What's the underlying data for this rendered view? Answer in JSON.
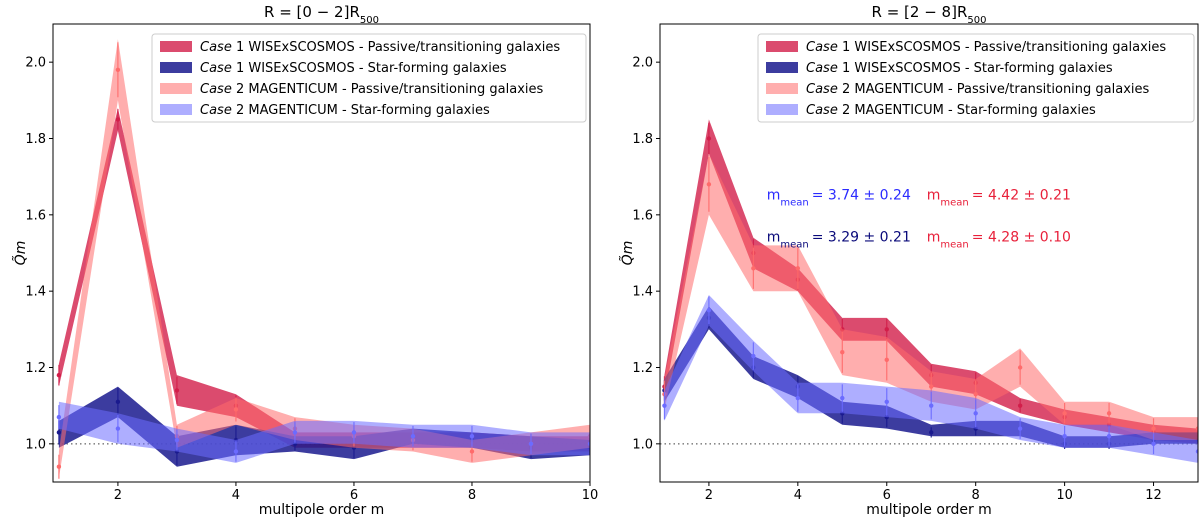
{
  "chart_data": [
    {
      "type": "line",
      "title": "R = [0 − 2]R",
      "title_sub": "500",
      "xlabel": "multipole order m",
      "ylabel": "Q̃m",
      "xlim": [
        0.9,
        10.0
      ],
      "ylim": [
        0.9,
        2.1
      ],
      "xticks": [
        2,
        4,
        6,
        8,
        10
      ],
      "yticks": [
        1.0,
        1.2,
        1.4,
        1.6,
        1.8,
        2.0
      ],
      "ytick_labels": [
        "1.0",
        "1.2",
        "1.4",
        "1.6",
        "1.8",
        "2.0"
      ],
      "reference_line": 1.0,
      "legend_position": "top-right",
      "series": [
        {
          "name_case": "Case",
          "name_rest": " 1 WISExSCOSMOS - Passive/transitioning galaxies",
          "color": "#d21e4a",
          "alpha": 0.8,
          "x": [
            1,
            2,
            3,
            4,
            5,
            6,
            7,
            8,
            9,
            10
          ],
          "values": [
            1.18,
            1.85,
            1.14,
            1.1,
            1.01,
            1.01,
            1.01,
            1.01,
            1.0,
            1.0
          ],
          "lower": [
            1.15,
            1.82,
            1.1,
            1.07,
            0.99,
            0.99,
            0.99,
            0.99,
            0.98,
            0.98
          ],
          "upper": [
            1.21,
            1.88,
            1.18,
            1.13,
            1.03,
            1.03,
            1.03,
            1.03,
            1.02,
            1.02
          ]
        },
        {
          "name_case": "Case",
          "name_rest": " 1 WISExSCOSMOS - Star-forming galaxies",
          "color": "#1a1a8e",
          "alpha": 0.85,
          "x": [
            1,
            2,
            3,
            4,
            5,
            6,
            7,
            8,
            9,
            10
          ],
          "values": [
            1.03,
            1.11,
            0.98,
            1.01,
            1.0,
            0.99,
            1.02,
            1.01,
            0.99,
            0.99
          ],
          "lower": [
            0.99,
            1.07,
            0.94,
            0.97,
            0.98,
            0.96,
            1.0,
            0.99,
            0.96,
            0.97
          ],
          "upper": [
            1.06,
            1.15,
            1.02,
            1.05,
            1.02,
            1.02,
            1.04,
            1.03,
            1.02,
            1.01
          ]
        },
        {
          "name_case": "Case",
          "name_rest": " 2 MAGENTICUM - Passive/transitioning galaxies",
          "color": "#ff6b6b",
          "alpha": 0.55,
          "x": [
            1,
            2,
            3,
            4,
            5,
            6,
            7,
            8,
            9,
            10
          ],
          "values": [
            0.94,
            1.98,
            1.02,
            1.09,
            1.04,
            1.02,
            1.01,
            0.98,
            1.0,
            1.02
          ],
          "lower": [
            0.91,
            1.9,
            0.99,
            1.05,
            1.01,
            0.99,
            0.98,
            0.95,
            0.97,
            0.99
          ],
          "upper": [
            0.98,
            2.06,
            1.05,
            1.12,
            1.07,
            1.05,
            1.04,
            1.01,
            1.03,
            1.05
          ]
        },
        {
          "name_case": "Case",
          "name_rest": " 2 MAGENTICUM - Star-forming galaxies",
          "color": "#6b6bff",
          "alpha": 0.55,
          "x": [
            1,
            2,
            3,
            4,
            5,
            6,
            7,
            8,
            9,
            10
          ],
          "values": [
            1.07,
            1.04,
            1.01,
            0.98,
            1.03,
            1.03,
            1.02,
            1.02,
            1.0,
            1.0
          ],
          "lower": [
            1.04,
            1.0,
            0.98,
            0.95,
            1.0,
            1.0,
            0.99,
            0.99,
            0.97,
            0.97
          ],
          "upper": [
            1.11,
            1.08,
            1.04,
            1.01,
            1.06,
            1.06,
            1.05,
            1.05,
            1.03,
            1.03
          ]
        }
      ],
      "annotations": []
    },
    {
      "type": "line",
      "title": "R = [2 − 8]R",
      "title_sub": "500",
      "xlabel": "multipole order m",
      "ylabel": "Q̃m",
      "xlim": [
        0.9,
        13.0
      ],
      "ylim": [
        0.9,
        2.1
      ],
      "xticks": [
        2,
        4,
        6,
        8,
        10,
        12
      ],
      "yticks": [
        1.0,
        1.2,
        1.4,
        1.6,
        1.8,
        2.0
      ],
      "ytick_labels": [
        "1.0",
        "1.2",
        "1.4",
        "1.6",
        "1.8",
        "2.0"
      ],
      "reference_line": 1.0,
      "legend_position": "top-right",
      "series": [
        {
          "name_case": "Case",
          "name_rest": " 1 WISExSCOSMOS - Passive/transitioning galaxies",
          "color": "#d21e4a",
          "alpha": 0.8,
          "x": [
            1,
            2,
            3,
            4,
            5,
            6,
            7,
            8,
            9,
            10,
            11,
            12,
            13
          ],
          "values": [
            1.15,
            1.8,
            1.5,
            1.43,
            1.3,
            1.3,
            1.18,
            1.16,
            1.1,
            1.07,
            1.05,
            1.03,
            1.02
          ],
          "lower": [
            1.12,
            1.76,
            1.46,
            1.4,
            1.27,
            1.27,
            1.15,
            1.13,
            1.08,
            1.05,
            1.03,
            1.01,
            1.0
          ],
          "upper": [
            1.18,
            1.85,
            1.54,
            1.46,
            1.33,
            1.33,
            1.21,
            1.19,
            1.12,
            1.09,
            1.07,
            1.05,
            1.04
          ]
        },
        {
          "name_case": "Case",
          "name_rest": " 1 WISExSCOSMOS - Star-forming galaxies",
          "color": "#1a1a8e",
          "alpha": 0.85,
          "x": [
            1,
            2,
            3,
            4,
            5,
            6,
            7,
            8,
            9,
            10,
            11,
            12,
            13
          ],
          "values": [
            1.14,
            1.33,
            1.2,
            1.15,
            1.08,
            1.07,
            1.03,
            1.04,
            1.04,
            1.0,
            1.0,
            1.01,
            1.01
          ],
          "lower": [
            1.11,
            1.3,
            1.17,
            1.12,
            1.05,
            1.04,
            1.02,
            1.02,
            1.02,
            0.99,
            0.99,
            1.0,
            1.0
          ],
          "upper": [
            1.17,
            1.36,
            1.23,
            1.18,
            1.11,
            1.1,
            1.05,
            1.06,
            1.06,
            1.02,
            1.02,
            1.03,
            1.03
          ]
        },
        {
          "name_case": "Case",
          "name_rest": " 2 MAGENTICUM - Passive/transitioning galaxies",
          "color": "#ff6b6b",
          "alpha": 0.55,
          "x": [
            1,
            2,
            3,
            4,
            5,
            6,
            7,
            8,
            9,
            10,
            11,
            12,
            13
          ],
          "values": [
            1.13,
            1.68,
            1.46,
            1.46,
            1.24,
            1.22,
            1.15,
            1.13,
            1.2,
            1.08,
            1.08,
            1.04,
            1.04
          ],
          "lower": [
            1.09,
            1.6,
            1.4,
            1.4,
            1.18,
            1.16,
            1.11,
            1.09,
            1.15,
            1.05,
            1.05,
            1.01,
            1.01
          ],
          "upper": [
            1.17,
            1.76,
            1.52,
            1.52,
            1.3,
            1.28,
            1.19,
            1.17,
            1.25,
            1.11,
            1.11,
            1.07,
            1.07
          ]
        },
        {
          "name_case": "Case",
          "name_rest": " 2 MAGENTICUM - Star-forming galaxies",
          "color": "#6b6bff",
          "alpha": 0.55,
          "x": [
            1,
            2,
            3,
            4,
            5,
            6,
            7,
            8,
            9,
            10,
            11,
            12,
            13
          ],
          "values": [
            1.1,
            1.35,
            1.23,
            1.12,
            1.12,
            1.11,
            1.1,
            1.08,
            1.04,
            1.02,
            1.02,
            1.0,
            0.98
          ],
          "lower": [
            1.06,
            1.31,
            1.19,
            1.08,
            1.08,
            1.07,
            1.06,
            1.04,
            1.01,
            0.99,
            0.99,
            0.97,
            0.95
          ],
          "upper": [
            1.14,
            1.39,
            1.27,
            1.16,
            1.16,
            1.15,
            1.14,
            1.12,
            1.07,
            1.05,
            1.05,
            1.03,
            1.01
          ]
        }
      ],
      "annotations": [
        {
          "label": "m",
          "sub": "mean",
          "text": "=  3.74 ± 0.24",
          "color": "#2b2bff",
          "x": 3.3,
          "y": 1.64
        },
        {
          "label": "m",
          "sub": "mean",
          "text": "=  4.42 ± 0.21",
          "color": "#e8203a",
          "x": 6.9,
          "y": 1.64
        },
        {
          "label": "m",
          "sub": "mean",
          "text": "=  3.29 ± 0.21",
          "color": "#0a0a7a",
          "x": 3.3,
          "y": 1.53
        },
        {
          "label": "m",
          "sub": "mean",
          "text": "=  4.28 ± 0.10",
          "color": "#e8203a",
          "x": 6.9,
          "y": 1.53
        }
      ]
    }
  ]
}
